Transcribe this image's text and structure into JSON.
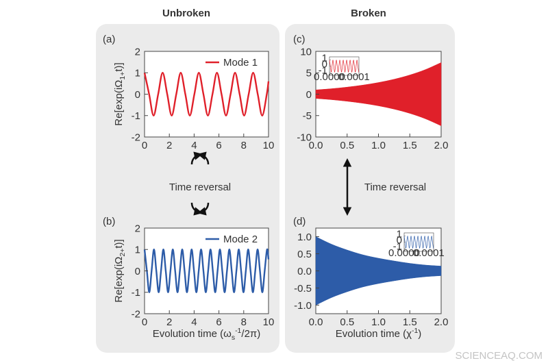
{
  "headers": [
    "Unbroken",
    "Broken"
  ],
  "arrow_labels": [
    "Time reversal",
    "Time reversal"
  ],
  "watermark": "SCIENCEAQ.COM",
  "chart_data": [
    {
      "type": "line",
      "panel": "(a)",
      "ylabel": [
        {
          "text": "Re[exp(iΩ"
        },
        {
          "text": "1+",
          "shift": "sub"
        },
        {
          "text": "t)]"
        }
      ],
      "xlim": [
        0,
        10
      ],
      "ylim": [
        -2,
        2
      ],
      "xticks": [
        0,
        2,
        4,
        6,
        8,
        10
      ],
      "yticks": [
        -2,
        -1,
        0,
        1,
        2
      ],
      "x": [
        0,
        0.37,
        0.73,
        1.1,
        1.46,
        1.83,
        2.19,
        2.56,
        2.92,
        3.29,
        3.65,
        4.02,
        4.38,
        4.75,
        5.11,
        5.48,
        5.84,
        6.21,
        6.57,
        6.94,
        7.3,
        7.67,
        8.03,
        8.4,
        8.76,
        9.13,
        9.49,
        9.86,
        10
      ],
      "series": [
        {
          "name": "Mode 1",
          "color": "#e0202a",
          "values": [
            1,
            0,
            -1,
            0,
            1,
            0,
            -1,
            0,
            1,
            0,
            -1,
            0,
            1,
            0,
            -1,
            0,
            1,
            0,
            -1,
            0,
            1,
            0,
            -1,
            0,
            1,
            0,
            -1,
            0,
            0.6
          ]
        }
      ]
    },
    {
      "type": "line",
      "panel": "(b)",
      "ylabel": [
        {
          "text": "Re[exp(iΩ"
        },
        {
          "text": "2+",
          "shift": "sub"
        },
        {
          "text": "t)]"
        }
      ],
      "xlabel": [
        {
          "text": "Evolution time (ω"
        },
        {
          "text": "s",
          "shift": "sub"
        },
        {
          "text": "-1",
          "shift": "sup"
        },
        {
          "text": "/2π)"
        }
      ],
      "xlim": [
        0,
        10
      ],
      "ylim": [
        -2,
        2
      ],
      "xticks": [
        0,
        2,
        4,
        6,
        8,
        10
      ],
      "yticks": [
        -2,
        -1,
        0,
        1,
        2
      ],
      "x": [
        0,
        0.19,
        0.38,
        0.57,
        0.76,
        0.95,
        1.14,
        1.33,
        1.52,
        1.71,
        1.9,
        2.09,
        2.28,
        2.47,
        2.66,
        2.85,
        3.04,
        3.23,
        3.42,
        3.61,
        3.8,
        3.99,
        4.18,
        4.37,
        4.56,
        4.75,
        4.94,
        5.13,
        5.32,
        5.51,
        5.7,
        5.89,
        6.08,
        6.27,
        6.46,
        6.65,
        6.84,
        7.03,
        7.22,
        7.41,
        7.6,
        7.79,
        7.98,
        8.17,
        8.36,
        8.55,
        8.74,
        8.93,
        9.12,
        9.31,
        9.5,
        9.69,
        9.88,
        10
      ],
      "series": [
        {
          "name": "Mode 2",
          "color": "#2d5ca8",
          "values": [
            1,
            0,
            -1,
            0,
            1,
            0,
            -1,
            0,
            1,
            0,
            -1,
            0,
            1,
            0,
            -1,
            0,
            1,
            0,
            -1,
            0,
            1,
            0,
            -1,
            0,
            1,
            0,
            -1,
            0,
            1,
            0,
            -1,
            0,
            1,
            0,
            -1,
            0,
            1,
            0,
            -1,
            0,
            1,
            0,
            -1,
            0,
            1,
            0,
            -1,
            0,
            1,
            0,
            -1,
            0,
            1,
            0.54
          ]
        }
      ]
    },
    {
      "type": "band",
      "panel": "(c)",
      "color": "#e0202a",
      "xlim": [
        0,
        2
      ],
      "ylim": [
        -10,
        10
      ],
      "xticks": [
        {
          "value": 0,
          "label": "0.0"
        },
        {
          "value": 0.5,
          "label": "0.5"
        },
        {
          "value": 1,
          "label": "1.0"
        },
        {
          "value": 1.5,
          "label": "1.5"
        },
        {
          "value": 2,
          "label": "2.0"
        }
      ],
      "yticks": [
        -10,
        -5,
        0,
        5,
        10
      ],
      "x": [
        0,
        0.25,
        0.5,
        0.75,
        1,
        1.25,
        1.5,
        1.75,
        2
      ],
      "upper": [
        1,
        1.28,
        1.65,
        2.12,
        2.72,
        3.49,
        4.48,
        5.75,
        7.39
      ],
      "lower": [
        -1,
        -1.28,
        -1.65,
        -2.12,
        -2.72,
        -3.49,
        -4.48,
        -5.75,
        -7.39
      ],
      "inset": {
        "type": "line",
        "xlim": [
          0,
          0.00012
        ],
        "ylim": [
          -1.5,
          1.5
        ],
        "xticks": [
          {
            "value": 0,
            "label": "0.0000"
          },
          {
            "value": 0.0001,
            "label": "0.0001"
          }
        ],
        "yticks": [
          -1,
          0,
          1
        ],
        "x": [
          0,
          3.5e-06,
          7e-06,
          1.05e-05,
          1.4e-05,
          1.75e-05,
          2.1e-05,
          2.45e-05,
          2.8e-05,
          3.15e-05,
          3.5e-05,
          3.85e-05,
          4.2e-05,
          4.55e-05,
          4.9e-05,
          5.25e-05,
          5.6e-05,
          5.95e-05,
          6.3e-05,
          6.65e-05,
          7e-05,
          7.35e-05,
          7.7e-05,
          8.05e-05,
          8.4e-05,
          8.75e-05,
          9.1e-05,
          9.45e-05,
          9.8e-05,
          0.0001015,
          0.000105,
          0.0001085,
          0.000112,
          0.0001155,
          0.000119
        ],
        "series": [
          {
            "color": "#e0202a",
            "values": [
              1,
              0,
              -1,
              0,
              1,
              0,
              -1,
              0,
              1,
              0,
              -1,
              0,
              1,
              0,
              -1,
              0,
              1,
              0,
              -1,
              0,
              1,
              0,
              -1,
              0,
              1,
              0,
              -1,
              0,
              1,
              0,
              -1,
              0,
              1,
              0,
              -1
            ]
          }
        ]
      }
    },
    {
      "type": "band",
      "panel": "(d)",
      "color": "#2d5ca8",
      "xlabel": [
        {
          "text": "Evolution time (χ"
        },
        {
          "text": "-1",
          "shift": "sup"
        },
        {
          "text": ")"
        }
      ],
      "xlim": [
        0,
        2
      ],
      "ylim": [
        -1.25,
        1.25
      ],
      "xticks": [
        {
          "value": 0,
          "label": "0.0"
        },
        {
          "value": 0.5,
          "label": "0.5"
        },
        {
          "value": 1,
          "label": "1.0"
        },
        {
          "value": 1.5,
          "label": "1.5"
        },
        {
          "value": 2,
          "label": "2.0"
        }
      ],
      "yticks": [
        {
          "value": -1,
          "label": "-1.0"
        },
        {
          "value": -0.5,
          "label": "-0.5"
        },
        {
          "value": 0,
          "label": "0.0"
        },
        {
          "value": 0.5,
          "label": "0.5"
        },
        {
          "value": 1,
          "label": "1.0"
        }
      ],
      "x": [
        0,
        0.25,
        0.5,
        0.75,
        1,
        1.25,
        1.5,
        1.75,
        2
      ],
      "upper": [
        1,
        0.78,
        0.61,
        0.47,
        0.37,
        0.29,
        0.22,
        0.17,
        0.14
      ],
      "lower": [
        -1,
        -0.78,
        -0.61,
        -0.47,
        -0.37,
        -0.29,
        -0.22,
        -0.17,
        -0.14
      ],
      "inset": {
        "type": "line",
        "xlim": [
          0,
          0.00012
        ],
        "ylim": [
          -1.5,
          1.5
        ],
        "xticks": [
          {
            "value": 0,
            "label": "0.0000"
          },
          {
            "value": 0.0001,
            "label": "0.0001"
          }
        ],
        "yticks": [
          -1,
          0,
          1
        ],
        "x": [
          0,
          3.5e-06,
          7e-06,
          1.05e-05,
          1.4e-05,
          1.75e-05,
          2.1e-05,
          2.45e-05,
          2.8e-05,
          3.15e-05,
          3.5e-05,
          3.85e-05,
          4.2e-05,
          4.55e-05,
          4.9e-05,
          5.25e-05,
          5.6e-05,
          5.95e-05,
          6.3e-05,
          6.65e-05,
          7e-05,
          7.35e-05,
          7.7e-05,
          8.05e-05,
          8.4e-05,
          8.75e-05,
          9.1e-05,
          9.45e-05,
          9.8e-05,
          0.0001015,
          0.000105,
          0.0001085,
          0.000112,
          0.0001155,
          0.000119
        ],
        "series": [
          {
            "color": "#2d5ca8",
            "values": [
              1,
              0,
              -1,
              0,
              1,
              0,
              -1,
              0,
              1,
              0,
              -1,
              0,
              1,
              0,
              -1,
              0,
              1,
              0,
              -1,
              0,
              1,
              0,
              -1,
              0,
              1,
              0,
              -1,
              0,
              1,
              0,
              -1,
              0,
              1,
              0,
              -1
            ]
          }
        ]
      }
    }
  ]
}
